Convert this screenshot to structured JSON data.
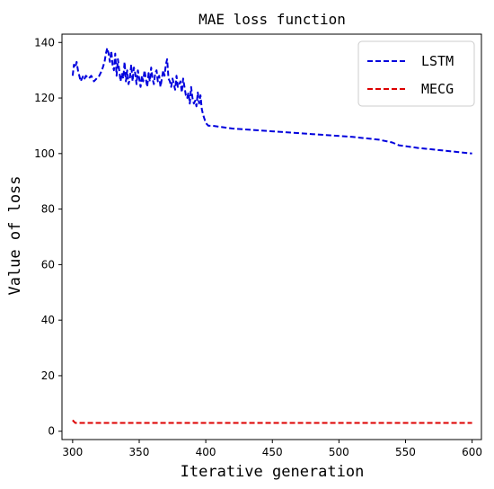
{
  "chart_data": {
    "type": "line",
    "title": "MAE loss function",
    "xlabel": "Iterative generation",
    "ylabel": "Value of loss",
    "xlim": [
      292,
      607
    ],
    "ylim": [
      -3,
      143
    ],
    "xticks": [
      300,
      350,
      400,
      450,
      500,
      550,
      600
    ],
    "yticks": [
      0,
      20,
      40,
      60,
      80,
      100,
      120,
      140
    ],
    "grid": false,
    "legend_position": "top-right",
    "series": [
      {
        "name": "LSTM",
        "color": "#0000dd",
        "linestyle": "dashed",
        "x": [
          300,
          301,
          302,
          303,
          304,
          305,
          306,
          307,
          308,
          309,
          310,
          312,
          314,
          316,
          318,
          320,
          322,
          324,
          325,
          326,
          327,
          328,
          329,
          330,
          331,
          332,
          333,
          334,
          335,
          336,
          337,
          338,
          339,
          340,
          341,
          342,
          343,
          344,
          345,
          346,
          347,
          348,
          349,
          350,
          351,
          352,
          353,
          354,
          355,
          356,
          357,
          358,
          359,
          360,
          361,
          362,
          363,
          364,
          365,
          366,
          367,
          368,
          369,
          370,
          371,
          372,
          373,
          374,
          375,
          376,
          377,
          378,
          379,
          380,
          381,
          382,
          383,
          384,
          385,
          386,
          387,
          388,
          389,
          390,
          391,
          392,
          393,
          394,
          395,
          396,
          397,
          398,
          400,
          402,
          405,
          420,
          450,
          480,
          510,
          530,
          540,
          545,
          560,
          580,
          600
        ],
        "y": [
          128,
          132,
          131,
          133,
          130,
          128,
          126,
          127,
          128,
          127,
          128,
          127,
          128,
          126,
          127,
          128,
          130,
          133,
          136,
          138,
          136,
          133,
          137,
          132,
          130,
          136,
          128,
          134,
          130,
          126,
          129,
          127,
          133,
          126,
          130,
          125,
          127,
          132,
          126,
          131,
          129,
          125,
          130,
          127,
          124,
          128,
          126,
          130,
          127,
          124,
          129,
          126,
          131,
          127,
          125,
          129,
          130,
          126,
          128,
          124,
          127,
          130,
          128,
          132,
          134,
          127,
          126,
          124,
          127,
          125,
          123,
          128,
          124,
          125,
          126,
          122,
          127,
          124,
          121,
          120,
          122,
          118,
          124,
          120,
          118,
          119,
          117,
          122,
          118,
          121,
          116,
          114,
          111,
          110,
          110,
          109,
          108,
          107,
          106,
          105,
          104,
          103,
          102,
          101,
          100
        ]
      },
      {
        "name": "MECG",
        "color": "#dd0000",
        "linestyle": "dashed",
        "x": [
          300,
          301,
          302,
          303,
          310,
          350,
          400,
          450,
          500,
          550,
          600
        ],
        "y": [
          4,
          3.5,
          3,
          3,
          3,
          3,
          3,
          3,
          3,
          3,
          3
        ]
      }
    ]
  }
}
